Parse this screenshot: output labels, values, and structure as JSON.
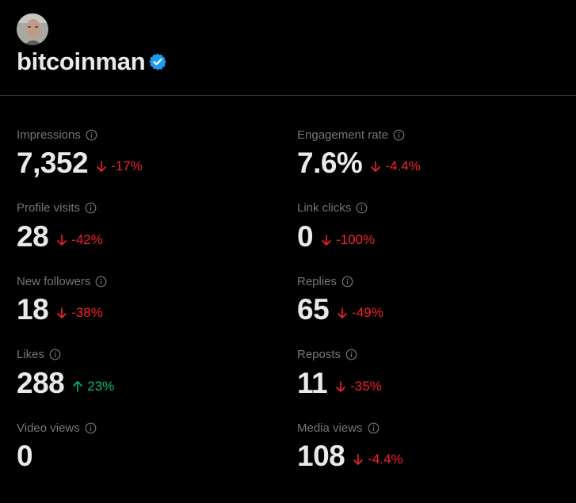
{
  "profile": {
    "username": "bitcoinman",
    "verified": true,
    "badge_color": "#1d9bf0"
  },
  "metrics_left": [
    {
      "label": "Impressions",
      "value": "7,352",
      "change": "-17%",
      "direction": "down"
    },
    {
      "label": "Profile visits",
      "value": "28",
      "change": "-42%",
      "direction": "down"
    },
    {
      "label": "New followers",
      "value": "18",
      "change": "-38%",
      "direction": "down"
    },
    {
      "label": "Likes",
      "value": "288",
      "change": "23%",
      "direction": "up"
    },
    {
      "label": "Video views",
      "value": "0",
      "change": "",
      "direction": "none"
    }
  ],
  "metrics_right": [
    {
      "label": "Engagement rate",
      "value": "7.6%",
      "change": "-4.4%",
      "direction": "down"
    },
    {
      "label": "Link clicks",
      "value": "0",
      "change": "-100%",
      "direction": "down"
    },
    {
      "label": "Replies",
      "value": "65",
      "change": "-49%",
      "direction": "down"
    },
    {
      "label": "Reposts",
      "value": "11",
      "change": "-35%",
      "direction": "down"
    },
    {
      "label": "Media views",
      "value": "108",
      "change": "-4.4%",
      "direction": "down"
    }
  ],
  "colors": {
    "background": "#000000",
    "text_primary": "#e7e9ea",
    "text_secondary": "#71767b",
    "negative": "#f4212e",
    "positive": "#00ba7c"
  },
  "icons": {
    "info": "info-icon",
    "down": "arrow-down-icon",
    "up": "arrow-up-icon",
    "verified": "verified-badge-icon"
  }
}
